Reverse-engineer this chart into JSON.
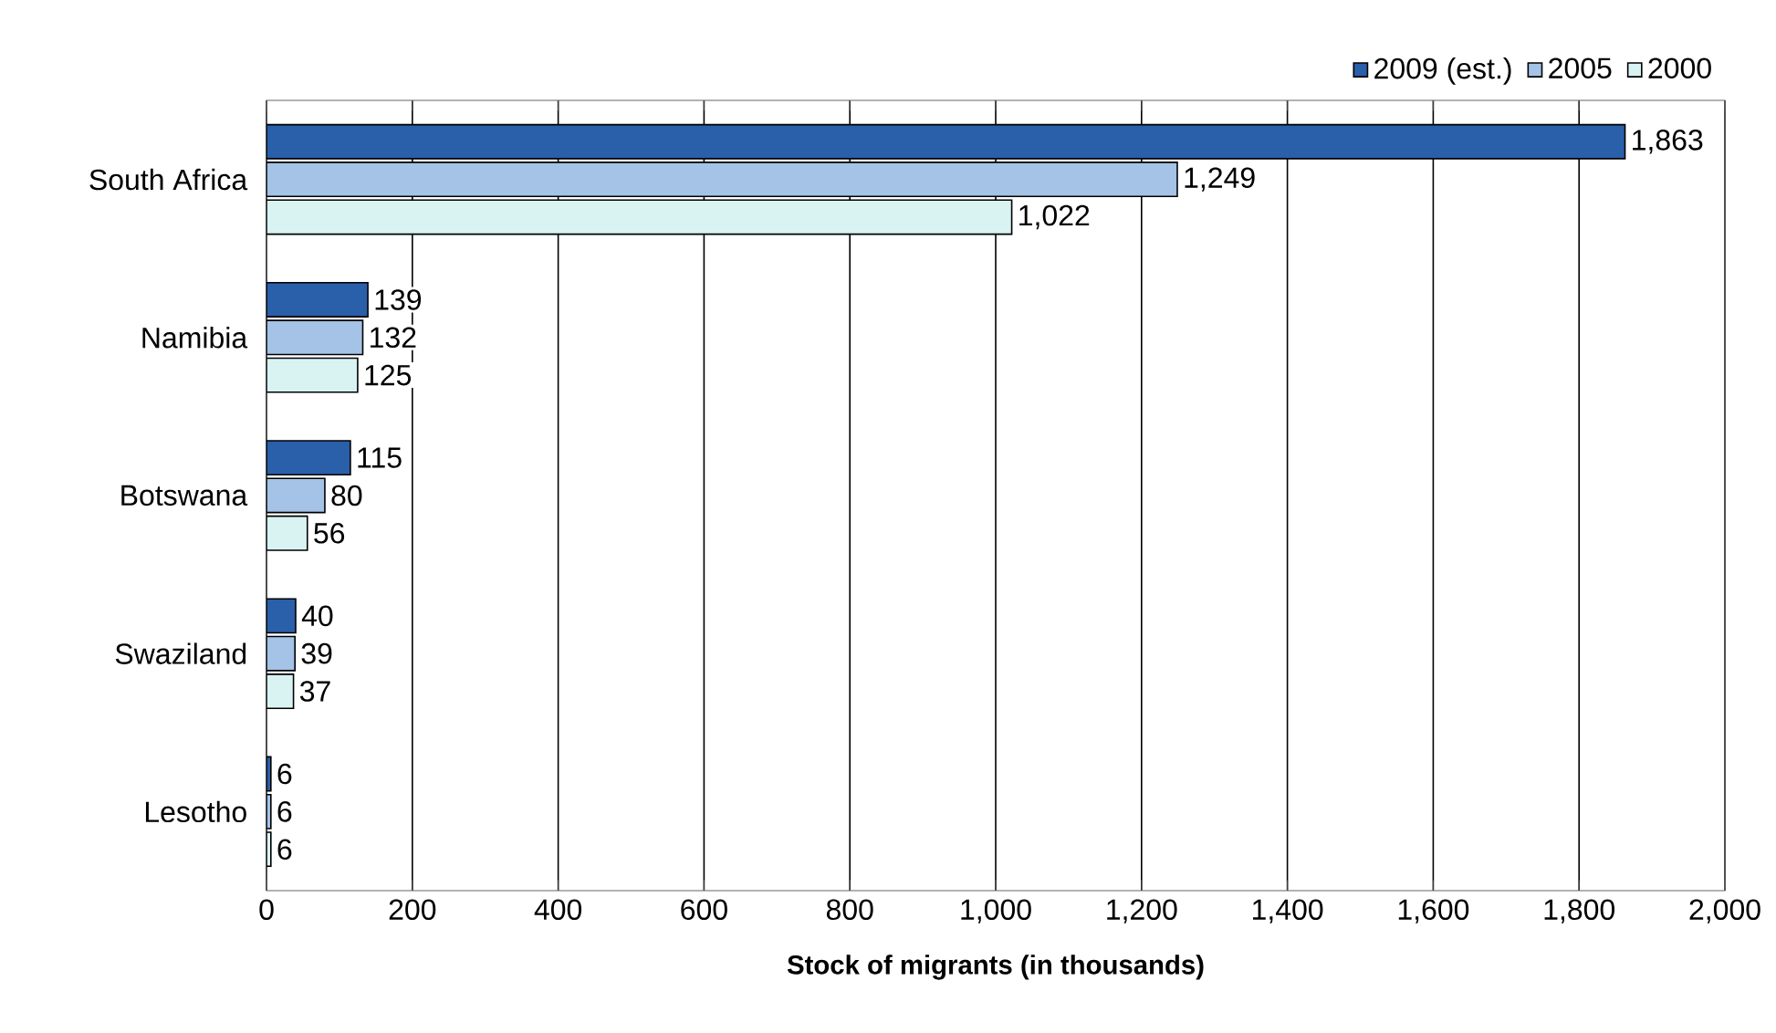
{
  "chart_data": {
    "type": "bar",
    "orientation": "horizontal",
    "xlabel": "Stock of migrants (in thousands)",
    "categories": [
      "South Africa",
      "Namibia",
      "Botswana",
      "Swaziland",
      "Lesotho"
    ],
    "series": [
      {
        "name": "2009 (est.)",
        "color": "#2a5faa",
        "values": [
          1863,
          139,
          115,
          40,
          6
        ],
        "value_labels": [
          "1,863",
          "139",
          "115",
          "40",
          "6"
        ]
      },
      {
        "name": "2005",
        "color": "#a4c3e6",
        "values": [
          1249,
          132,
          80,
          39,
          6
        ],
        "value_labels": [
          "1,249",
          "132",
          "80",
          "39",
          "6"
        ]
      },
      {
        "name": "2000",
        "color": "#d9f3f3",
        "values": [
          1022,
          125,
          56,
          37,
          6
        ],
        "value_labels": [
          "1,022",
          "125",
          "56",
          "37",
          "6"
        ]
      }
    ],
    "xlim": [
      0,
      2000
    ],
    "xticks": [
      0,
      200,
      400,
      600,
      800,
      {
        "value": 1000,
        "label": "1,000"
      },
      {
        "value": 1200,
        "label": "1,200"
      },
      {
        "value": 1400,
        "label": "1,400"
      },
      {
        "value": 1600,
        "label": "1,600"
      },
      {
        "value": 1800,
        "label": "1,800"
      },
      {
        "value": 2000,
        "label": "2,000"
      }
    ],
    "grid": "x",
    "legend": "top right"
  }
}
